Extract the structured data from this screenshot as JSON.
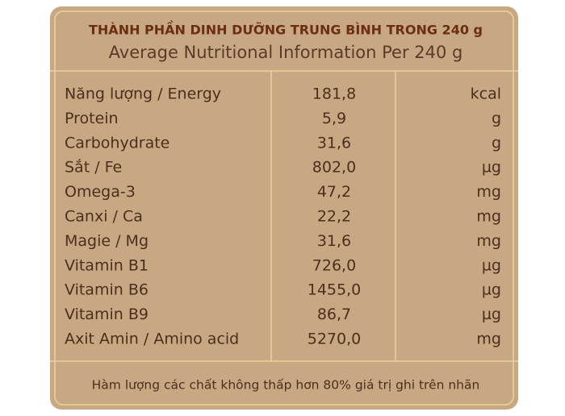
{
  "header": {
    "title": "THÀNH PHẦN DINH DƯỠNG TRUNG BÌNH TRONG 240 g",
    "subtitle": "Average Nutritional Information Per 240 g"
  },
  "table": {
    "rows": [
      [
        "Năng lượng / Energy",
        "181,8",
        "kcal"
      ],
      [
        "Protein",
        "5,9",
        "g"
      ],
      [
        "Carbohydrate",
        "31,6",
        "g"
      ],
      [
        "Sắt / Fe",
        "802,0",
        "µg"
      ],
      [
        "Omega-3",
        "47,2",
        "mg"
      ],
      [
        "Canxi  / Ca",
        "22,2",
        "mg"
      ],
      [
        "Magie  / Mg",
        "31,6",
        "mg"
      ],
      [
        "Vitamin B1",
        "726,0",
        "µg"
      ],
      [
        "Vitamin B6",
        "1455,0",
        "µg"
      ],
      [
        "Vitamin B9",
        "86,7",
        "µg"
      ],
      [
        "Axit Amin  / Amino acid",
        "5270,0",
        "mg"
      ]
    ]
  },
  "footer": {
    "note": "Hàm lượng các chất không thấp hơn 80% giá trị ghi trên nhãn"
  }
}
